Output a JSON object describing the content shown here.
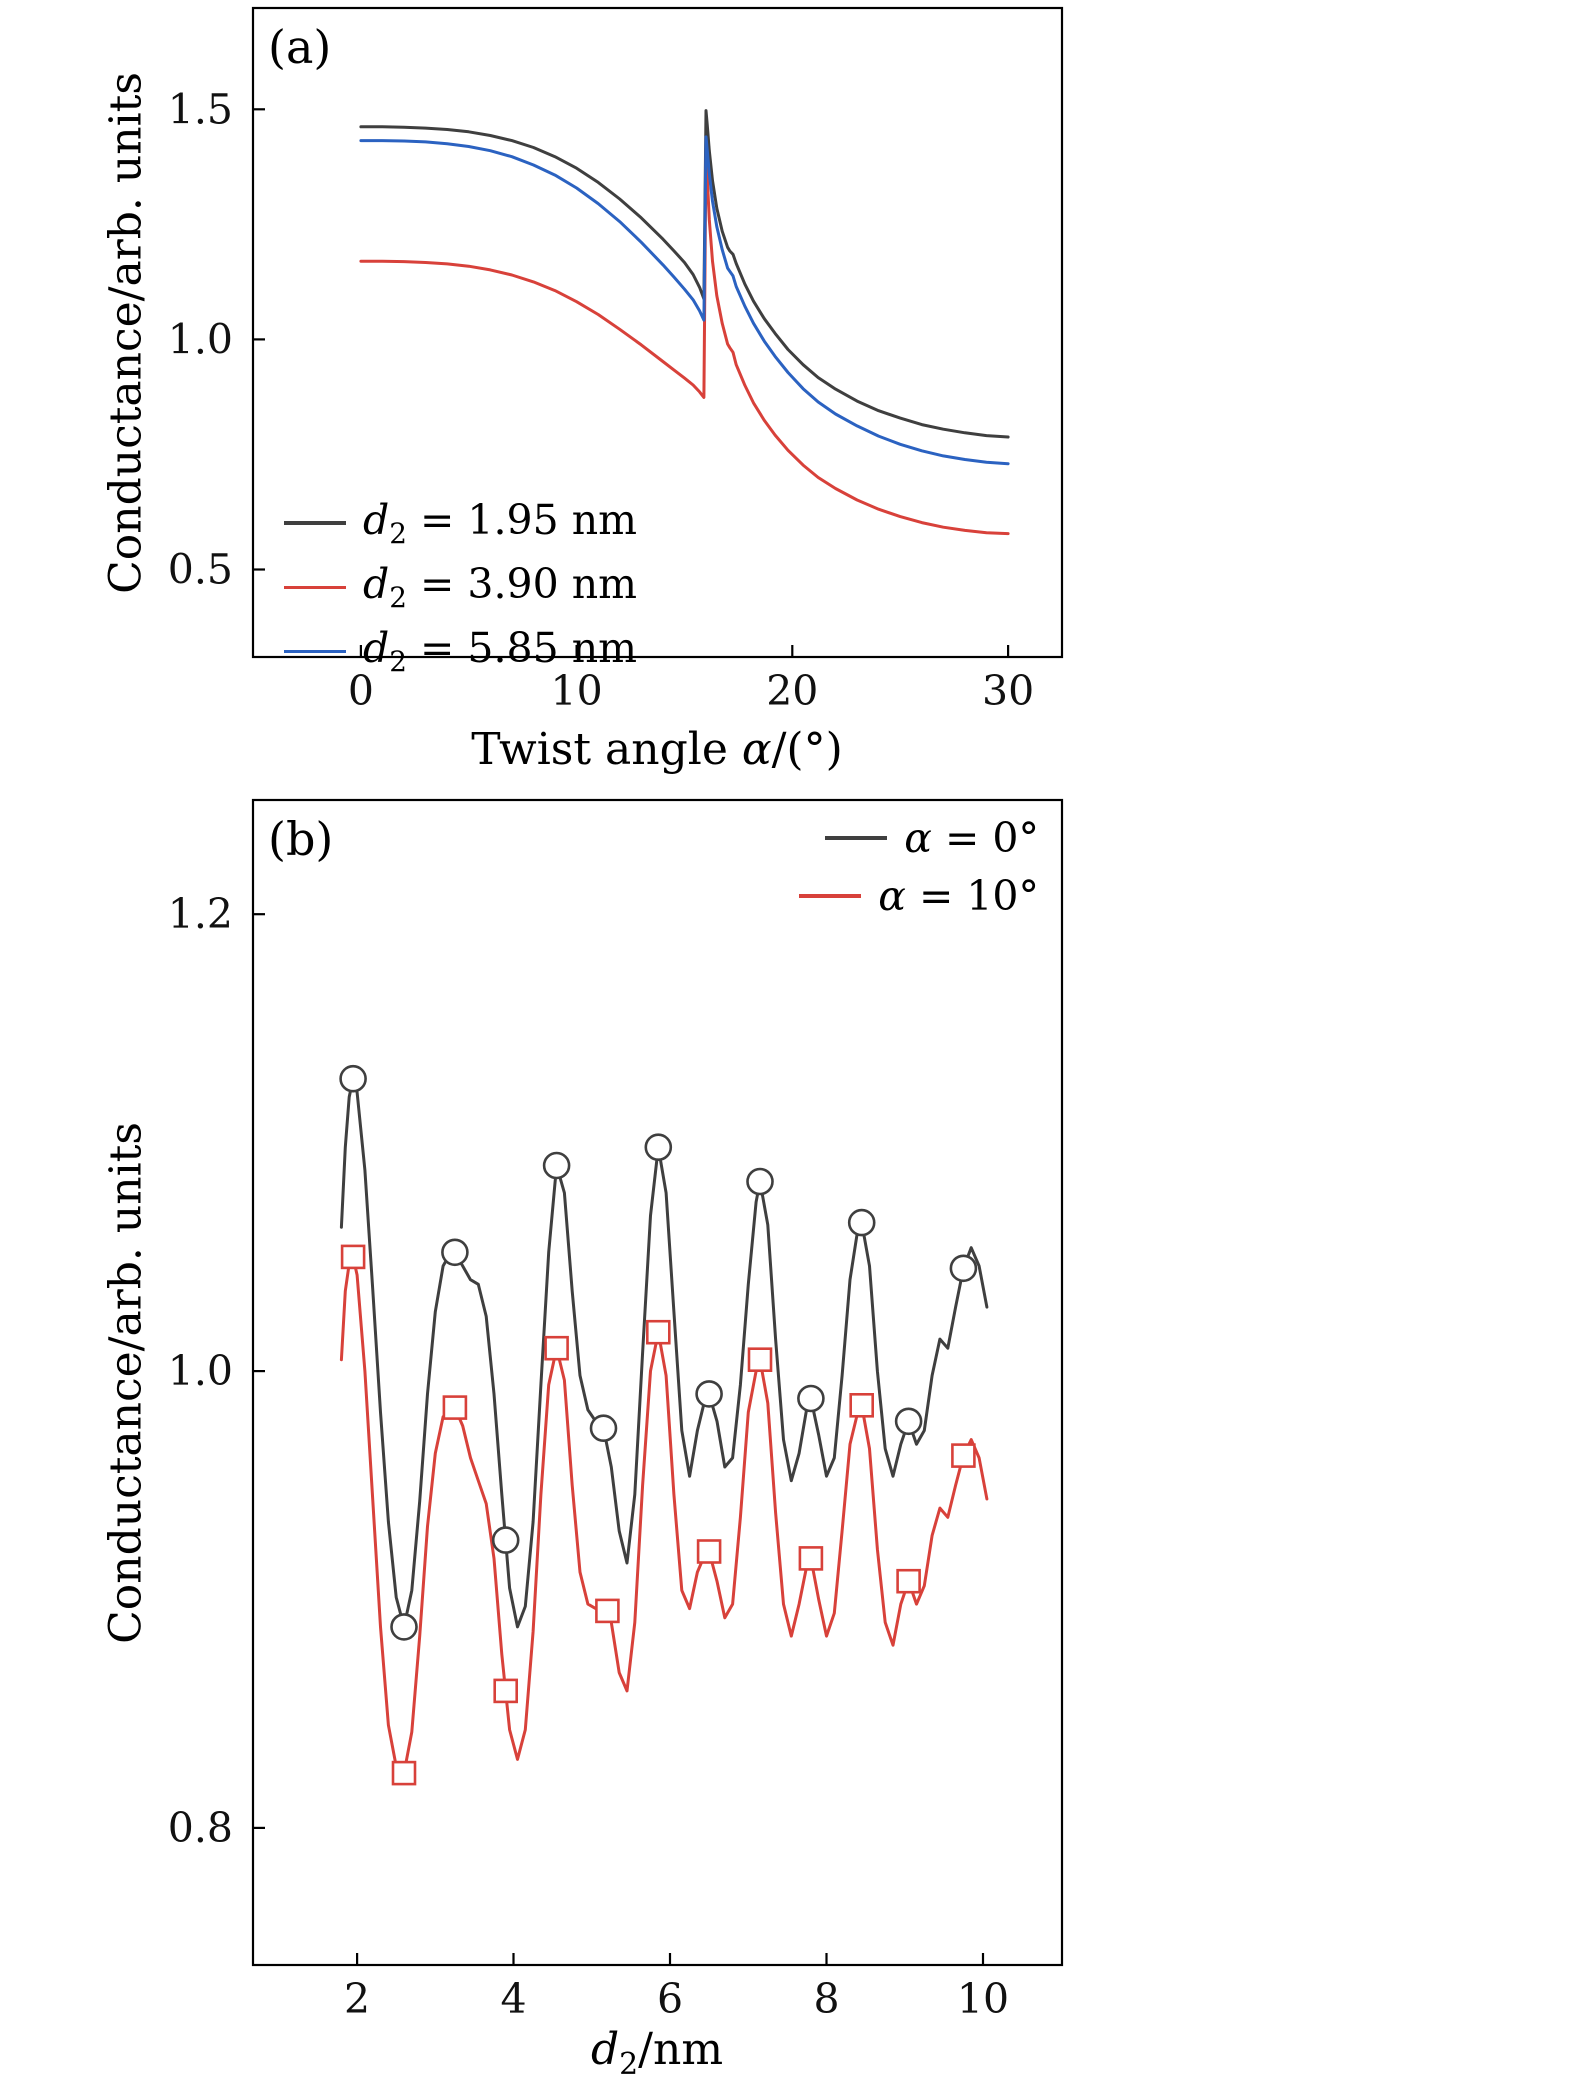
{
  "chart_data": [
    {
      "panel": "a",
      "type": "line",
      "panel_label": "(a)",
      "ylabel": "Conductance/arb. units",
      "xlabel_prefix": "Twist angle ",
      "xlabel_var": "α",
      "xlabel_suffix": "/(°)",
      "xlim": [
        -5,
        32.5
      ],
      "ylim": [
        0.31,
        1.72
      ],
      "xticks": [
        0,
        10,
        20,
        30
      ],
      "xtick_labels": [
        "0",
        "10",
        "20",
        "30"
      ],
      "yticks": [
        0.5,
        1.0,
        1.5
      ],
      "ytick_labels": [
        "0.5",
        "1.0",
        "1.5"
      ],
      "grid": false,
      "legend_position": "lower-left",
      "series": [
        {
          "key": "d2-1.95",
          "name": "d₂ = 1.95 nm",
          "name_var": "d",
          "name_sub": "2",
          "name_rest": " = 1.95 nm",
          "color": "#3f3f3f",
          "x": [
            0,
            1,
            2,
            3,
            4,
            5,
            6,
            7,
            8,
            9,
            10,
            11,
            12,
            13,
            14,
            14.5,
            15,
            15.4,
            15.7,
            15.9,
            16,
            16.05,
            16.15,
            16.3,
            16.5,
            16.75,
            17,
            17.1,
            17.25,
            17.4,
            17.8,
            18.2,
            18.7,
            19.2,
            19.8,
            20.5,
            21.2,
            22,
            23,
            24,
            25,
            26,
            27,
            28,
            29,
            30
          ],
          "y": [
            1.462,
            1.462,
            1.461,
            1.459,
            1.456,
            1.451,
            1.443,
            1.432,
            1.417,
            1.397,
            1.372,
            1.341,
            1.305,
            1.264,
            1.218,
            1.193,
            1.167,
            1.141,
            1.113,
            1.088,
            1.497,
            1.47,
            1.41,
            1.345,
            1.285,
            1.235,
            1.2,
            1.192,
            1.185,
            1.165,
            1.12,
            1.083,
            1.045,
            1.013,
            0.978,
            0.945,
            0.917,
            0.892,
            0.866,
            0.845,
            0.829,
            0.815,
            0.805,
            0.797,
            0.791,
            0.788
          ]
        },
        {
          "key": "d2-3.90",
          "name": "d₂ = 3.90 nm",
          "name_var": "d",
          "name_sub": "2",
          "name_rest": " = 3.90 nm",
          "color": "#d8413a",
          "x": [
            0,
            1,
            2,
            3,
            4,
            5,
            6,
            7,
            8,
            9,
            10,
            11,
            12,
            13,
            14,
            14.5,
            15,
            15.4,
            15.7,
            15.9,
            16,
            16.05,
            16.15,
            16.3,
            16.5,
            16.75,
            17,
            17.1,
            17.25,
            17.4,
            17.8,
            18.2,
            18.7,
            19.2,
            19.8,
            20.5,
            21.2,
            22,
            23,
            24,
            25,
            26,
            27,
            28,
            29,
            30
          ],
          "y": [
            1.17,
            1.17,
            1.169,
            1.167,
            1.164,
            1.159,
            1.151,
            1.14,
            1.125,
            1.106,
            1.082,
            1.054,
            1.022,
            0.988,
            0.952,
            0.934,
            0.916,
            0.901,
            0.886,
            0.874,
            1.415,
            1.36,
            1.26,
            1.17,
            1.095,
            1.035,
            0.99,
            0.982,
            0.972,
            0.945,
            0.9,
            0.862,
            0.824,
            0.792,
            0.759,
            0.727,
            0.7,
            0.676,
            0.651,
            0.631,
            0.615,
            0.602,
            0.592,
            0.585,
            0.58,
            0.578
          ]
        },
        {
          "key": "d2-5.85",
          "name": "d₂ = 5.85 nm",
          "name_var": "d",
          "name_sub": "2",
          "name_rest": " = 5.85 nm",
          "color": "#2b62c1",
          "x": [
            0,
            1,
            2,
            3,
            4,
            5,
            6,
            7,
            8,
            9,
            10,
            11,
            12,
            13,
            14,
            14.5,
            15,
            15.4,
            15.7,
            15.9,
            16,
            16.05,
            16.15,
            16.3,
            16.5,
            16.75,
            17,
            17.1,
            17.25,
            17.4,
            17.8,
            18.2,
            18.7,
            19.2,
            19.8,
            20.5,
            21.2,
            22,
            23,
            24,
            25,
            26,
            27,
            28,
            29,
            30
          ],
          "y": [
            1.432,
            1.432,
            1.431,
            1.429,
            1.425,
            1.419,
            1.41,
            1.397,
            1.379,
            1.357,
            1.329,
            1.295,
            1.256,
            1.211,
            1.162,
            1.136,
            1.109,
            1.086,
            1.062,
            1.042,
            1.44,
            1.415,
            1.36,
            1.3,
            1.245,
            1.195,
            1.155,
            1.148,
            1.138,
            1.115,
            1.072,
            1.035,
            0.996,
            0.963,
            0.928,
            0.893,
            0.864,
            0.838,
            0.812,
            0.79,
            0.772,
            0.758,
            0.747,
            0.739,
            0.733,
            0.73
          ]
        }
      ]
    },
    {
      "panel": "b",
      "type": "line",
      "panel_label": "(b)",
      "ylabel": "Conductance/arb. units",
      "xlabel_prefix": "",
      "xlabel_var": "d",
      "xlabel_sub": "2",
      "xlabel_suffix": "/nm",
      "xlim": [
        0.67,
        11.01
      ],
      "ylim": [
        0.74,
        1.25
      ],
      "xticks": [
        2,
        4,
        6,
        8,
        10
      ],
      "xtick_labels": [
        "2",
        "4",
        "6",
        "8",
        "10"
      ],
      "yticks": [
        0.8,
        1.0,
        1.2
      ],
      "ytick_labels": [
        "0.8",
        "1.0",
        "1.2"
      ],
      "grid": false,
      "legend_position": "upper-right",
      "series": [
        {
          "key": "alpha-0",
          "name": "α = 0°",
          "name_var": "α",
          "name_sub": "",
          "name_rest": " = 0°",
          "color": "#3f3f3f",
          "marker": "circle",
          "x": [
            1.8,
            1.85,
            1.9,
            1.95,
            2.0,
            2.1,
            2.2,
            2.3,
            2.4,
            2.5,
            2.6,
            2.7,
            2.8,
            2.9,
            3.0,
            3.1,
            3.2,
            3.25,
            3.35,
            3.45,
            3.55,
            3.65,
            3.75,
            3.85,
            3.95,
            4.05,
            4.15,
            4.25,
            4.35,
            4.45,
            4.55,
            4.65,
            4.75,
            4.85,
            4.95,
            5.05,
            5.15,
            5.25,
            5.35,
            5.45,
            5.55,
            5.65,
            5.75,
            5.85,
            5.95,
            6.05,
            6.15,
            6.25,
            6.35,
            6.45,
            6.5,
            6.6,
            6.7,
            6.8,
            6.9,
            7.0,
            7.1,
            7.15,
            7.25,
            7.35,
            7.45,
            7.55,
            7.65,
            7.75,
            7.8,
            7.9,
            8.0,
            8.1,
            8.2,
            8.3,
            8.4,
            8.45,
            8.55,
            8.65,
            8.75,
            8.85,
            8.95,
            9.05,
            9.15,
            9.25,
            9.35,
            9.45,
            9.55,
            9.65,
            9.75,
            9.85,
            9.95,
            10.05
          ],
          "y": [
            1.063,
            1.098,
            1.12,
            1.128,
            1.122,
            1.088,
            1.036,
            0.982,
            0.934,
            0.901,
            0.888,
            0.904,
            0.943,
            0.99,
            1.026,
            1.046,
            1.052,
            1.052,
            1.046,
            1.04,
            1.038,
            1.024,
            0.99,
            0.946,
            0.905,
            0.888,
            0.897,
            0.934,
            0.994,
            1.052,
            1.09,
            1.078,
            1.035,
            0.998,
            0.983,
            0.978,
            0.975,
            0.958,
            0.93,
            0.916,
            0.946,
            1.008,
            1.068,
            1.098,
            1.078,
            1.026,
            0.974,
            0.954,
            0.974,
            0.988,
            0.99,
            0.978,
            0.958,
            0.962,
            0.994,
            1.038,
            1.074,
            1.083,
            1.064,
            1.014,
            0.97,
            0.952,
            0.964,
            0.984,
            0.988,
            0.972,
            0.954,
            0.962,
            0.998,
            1.04,
            1.062,
            1.065,
            1.046,
            1.0,
            0.966,
            0.954,
            0.968,
            0.978,
            0.968,
            0.974,
            0.998,
            1.014,
            1.01,
            1.028,
            1.045,
            1.054,
            1.046,
            1.028
          ],
          "markers": [
            [
              1.95,
              1.128
            ],
            [
              2.6,
              0.888
            ],
            [
              3.25,
              1.052
            ],
            [
              3.9,
              0.926
            ],
            [
              4.55,
              1.09
            ],
            [
              5.15,
              0.975
            ],
            [
              5.85,
              1.098
            ],
            [
              6.5,
              0.99
            ],
            [
              7.15,
              1.083
            ],
            [
              7.8,
              0.988
            ],
            [
              8.45,
              1.065
            ],
            [
              9.05,
              0.978
            ],
            [
              9.75,
              1.045
            ]
          ]
        },
        {
          "key": "alpha-10",
          "name": "α = 10°",
          "name_var": "α",
          "name_sub": "",
          "name_rest": " = 10°",
          "color": "#d8413a",
          "marker": "square",
          "x": [
            1.8,
            1.85,
            1.9,
            1.95,
            2.0,
            2.1,
            2.2,
            2.3,
            2.4,
            2.5,
            2.6,
            2.7,
            2.8,
            2.9,
            3.0,
            3.1,
            3.2,
            3.25,
            3.35,
            3.45,
            3.55,
            3.65,
            3.75,
            3.85,
            3.95,
            4.05,
            4.15,
            4.25,
            4.35,
            4.45,
            4.55,
            4.65,
            4.75,
            4.85,
            4.95,
            5.05,
            5.15,
            5.25,
            5.35,
            5.45,
            5.55,
            5.65,
            5.75,
            5.85,
            5.95,
            6.05,
            6.15,
            6.25,
            6.35,
            6.45,
            6.5,
            6.6,
            6.7,
            6.8,
            6.9,
            7.0,
            7.1,
            7.15,
            7.25,
            7.35,
            7.45,
            7.55,
            7.65,
            7.75,
            7.8,
            7.9,
            8.0,
            8.1,
            8.2,
            8.3,
            8.4,
            8.45,
            8.55,
            8.65,
            8.75,
            8.85,
            8.95,
            9.05,
            9.15,
            9.25,
            9.35,
            9.45,
            9.55,
            9.65,
            9.75,
            9.85,
            9.95,
            10.05
          ],
          "y": [
            1.005,
            1.035,
            1.047,
            1.05,
            1.042,
            1.0,
            0.944,
            0.888,
            0.845,
            0.827,
            0.824,
            0.842,
            0.884,
            0.932,
            0.964,
            0.98,
            0.984,
            0.984,
            0.976,
            0.962,
            0.952,
            0.942,
            0.918,
            0.876,
            0.843,
            0.83,
            0.843,
            0.886,
            0.946,
            0.994,
            1.01,
            0.996,
            0.95,
            0.912,
            0.898,
            0.896,
            0.899,
            0.89,
            0.868,
            0.86,
            0.89,
            0.95,
            1.0,
            1.017,
            0.998,
            0.946,
            0.904,
            0.896,
            0.912,
            0.92,
            0.921,
            0.908,
            0.892,
            0.898,
            0.936,
            0.982,
            1.0,
            1.005,
            0.986,
            0.938,
            0.898,
            0.884,
            0.898,
            0.915,
            0.918,
            0.9,
            0.884,
            0.894,
            0.93,
            0.968,
            0.982,
            0.985,
            0.966,
            0.922,
            0.89,
            0.88,
            0.898,
            0.908,
            0.898,
            0.906,
            0.928,
            0.94,
            0.936,
            0.95,
            0.963,
            0.97,
            0.962,
            0.944
          ],
          "markers": [
            [
              1.95,
              1.05
            ],
            [
              2.6,
              0.824
            ],
            [
              3.25,
              0.984
            ],
            [
              3.9,
              0.86
            ],
            [
              4.55,
              1.01
            ],
            [
              5.2,
              0.895
            ],
            [
              5.85,
              1.017
            ],
            [
              6.5,
              0.921
            ],
            [
              7.15,
              1.005
            ],
            [
              7.8,
              0.918
            ],
            [
              8.45,
              0.985
            ],
            [
              9.05,
              0.908
            ],
            [
              9.75,
              0.963
            ]
          ]
        }
      ]
    }
  ]
}
